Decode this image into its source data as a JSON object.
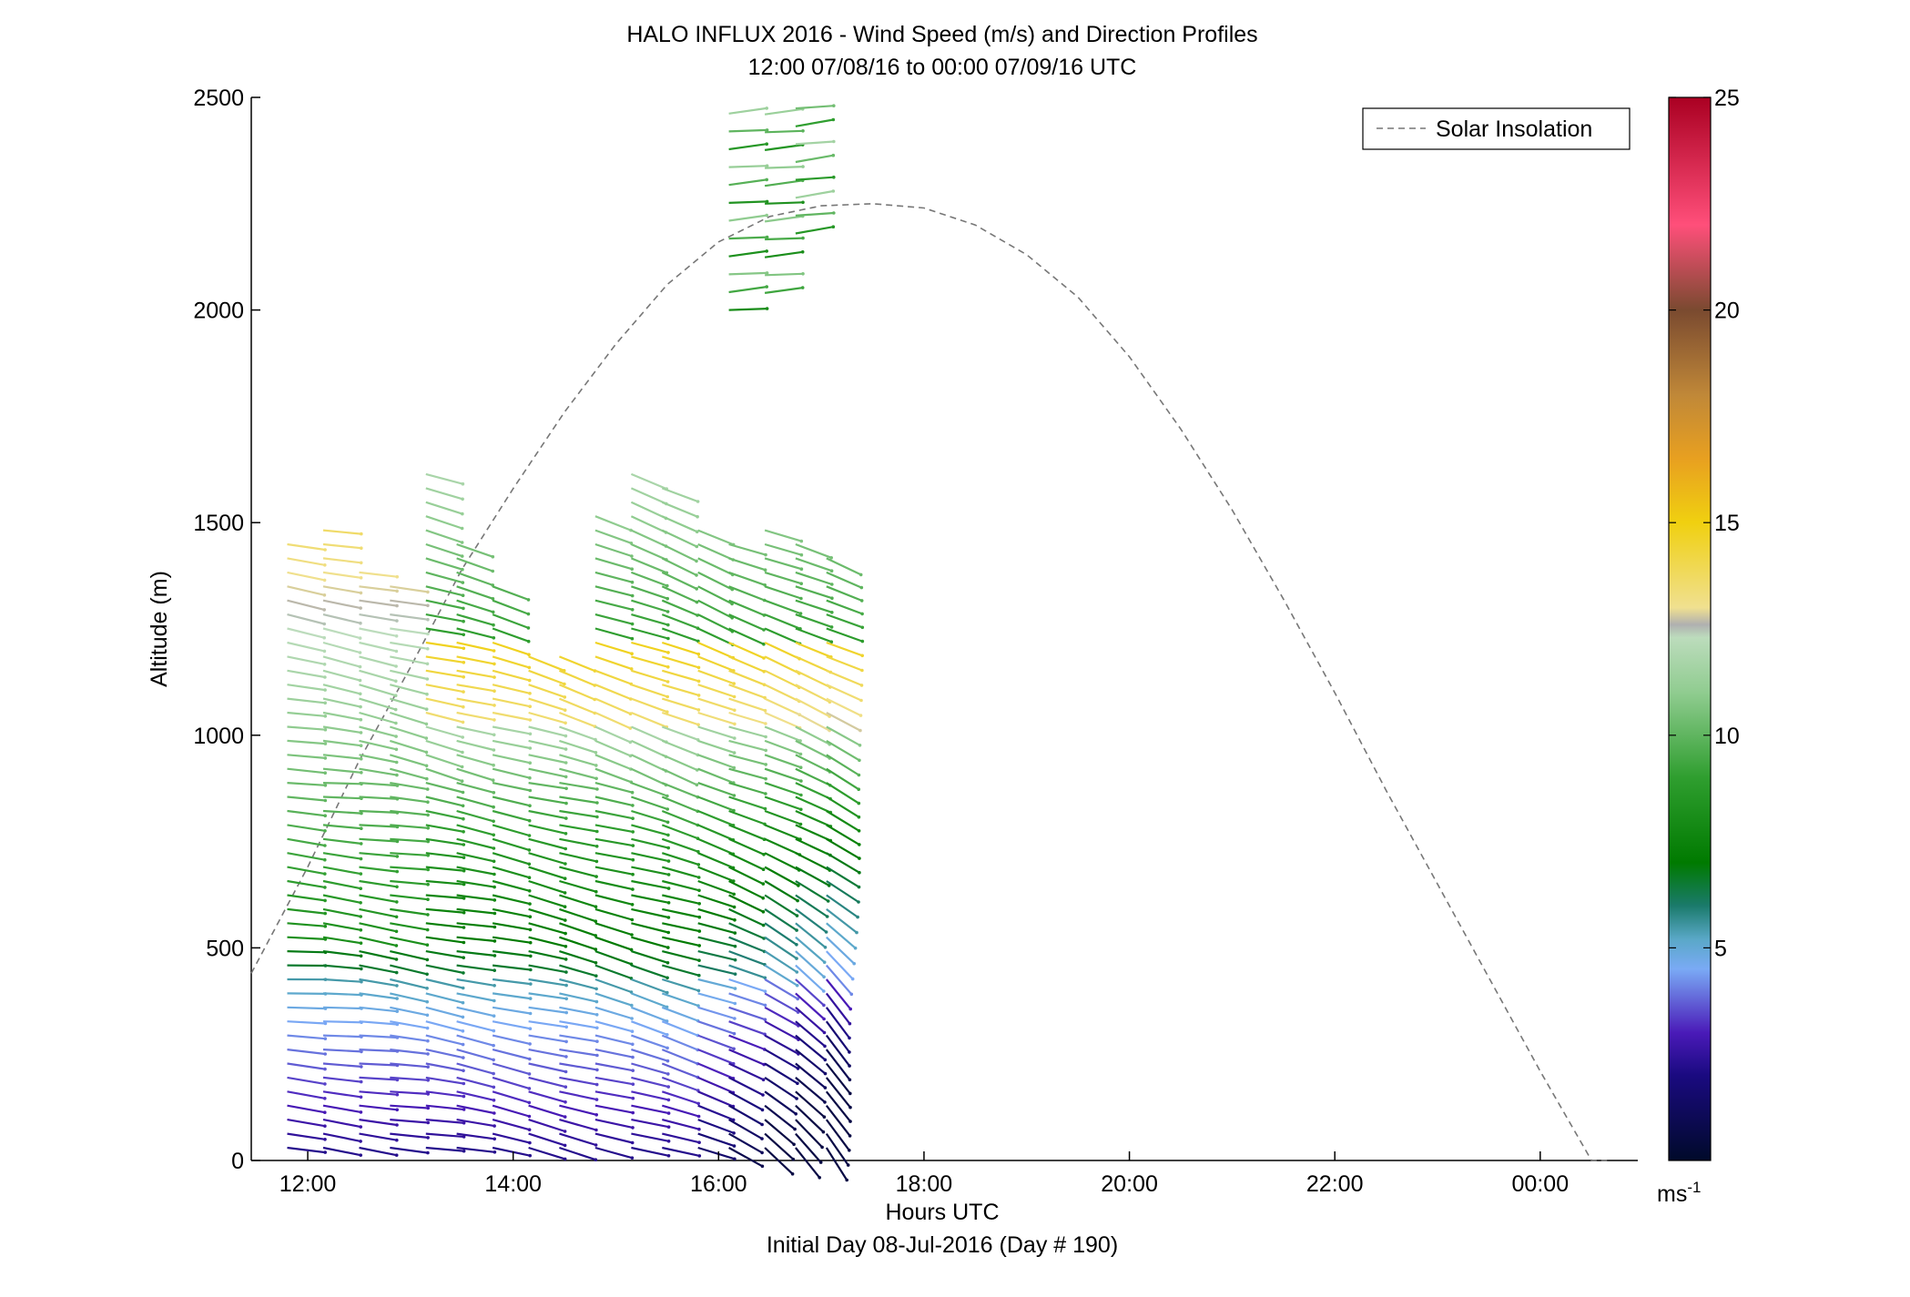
{
  "chart_data": {
    "type": "wind-barb-profile",
    "title": "HALO INFLUX 2016 - Wind Speed (m/s) and Direction Profiles",
    "subtitle": "12:00 07/08/16 to 00:00 07/09/16  UTC",
    "xlabel": "Hours UTC",
    "xlabel2": "Initial Day 08-Jul-2016 (Day # 190)",
    "ylabel": "Altitude (m)",
    "xlim_hours": [
      11.45,
      24.95
    ],
    "ylim": [
      0,
      2500
    ],
    "x_ticks": [
      {
        "hour": 12,
        "label": "12:00"
      },
      {
        "hour": 14,
        "label": "14:00"
      },
      {
        "hour": 16,
        "label": "16:00"
      },
      {
        "hour": 18,
        "label": "18:00"
      },
      {
        "hour": 20,
        "label": "20:00"
      },
      {
        "hour": 22,
        "label": "22:00"
      },
      {
        "hour": 24,
        "label": "00:00"
      }
    ],
    "y_ticks": [
      0,
      500,
      1000,
      1500,
      2000,
      2500
    ],
    "legend": {
      "label": "Solar Insolation",
      "placement": "top-right",
      "style": "dashed",
      "color": "#777777"
    },
    "solar_insolation": {
      "peak_hour": 17.75,
      "peak_altitude_equiv": 2250,
      "x": [
        11.45,
        12,
        12.5,
        13,
        13.5,
        14,
        14.5,
        15,
        15.5,
        16,
        16.5,
        17,
        17.5,
        18,
        18.5,
        19,
        19.5,
        20,
        20.5,
        21,
        21.5,
        22,
        22.5,
        23,
        23.5,
        24,
        24.5,
        24.65
      ],
      "y": [
        440,
        690,
        940,
        1160,
        1390,
        1580,
        1760,
        1920,
        2060,
        2160,
        2220,
        2245,
        2250,
        2240,
        2200,
        2130,
        2030,
        1890,
        1720,
        1530,
        1320,
        1100,
        870,
        650,
        430,
        210,
        0,
        -60
      ]
    },
    "colorbar": {
      "min": 0,
      "max": 25,
      "ticks": [
        5,
        10,
        15,
        20,
        25
      ],
      "unit_label": "ms",
      "unit_exponent": "-1",
      "colors": [
        {
          "v": 0,
          "c": "#000a2a"
        },
        {
          "v": 2,
          "c": "#1a0a80"
        },
        {
          "v": 3,
          "c": "#4a1ab8"
        },
        {
          "v": 4.5,
          "c": "#7aaaf5"
        },
        {
          "v": 5.2,
          "c": "#5aa8c8"
        },
        {
          "v": 6,
          "c": "#1a7a6a"
        },
        {
          "v": 7,
          "c": "#007a00"
        },
        {
          "v": 9,
          "c": "#2f9e2f"
        },
        {
          "v": 11,
          "c": "#90cc90"
        },
        {
          "v": 12.3,
          "c": "#bcdcbc"
        },
        {
          "v": 12.6,
          "c": "#b0b0b0"
        },
        {
          "v": 13,
          "c": "#f0e090"
        },
        {
          "v": 15,
          "c": "#f0d010"
        },
        {
          "v": 16.5,
          "c": "#e8a020"
        },
        {
          "v": 18,
          "c": "#c08838"
        },
        {
          "v": 20,
          "c": "#7a4a30"
        },
        {
          "v": 22,
          "c": "#ff4f7a"
        },
        {
          "v": 25,
          "c": "#aa0022"
        }
      ]
    },
    "profiles": {
      "times": [
        11.8,
        12.15,
        12.5,
        12.8,
        13.15,
        13.45,
        13.8,
        14.15,
        14.45,
        14.8,
        15.15,
        15.45,
        15.8,
        16.1,
        16.45,
        16.75,
        17.05
      ],
      "max_altitude": [
        1450,
        1490,
        1400,
        1370,
        1630,
        1450,
        1360,
        1210,
        1200,
        1540,
        1620,
        1600,
        1500,
        1480,
        1490,
        1460,
        1430
      ],
      "level_spacing": 33
    },
    "upper_segments": [
      {
        "hour": 16.1,
        "alt_min": 2000,
        "alt_max": 2500
      },
      {
        "hour": 16.45,
        "alt_min": 2040,
        "alt_max": 2500
      },
      {
        "hour": 16.75,
        "alt_min": 2180,
        "alt_max": 2500
      }
    ]
  }
}
